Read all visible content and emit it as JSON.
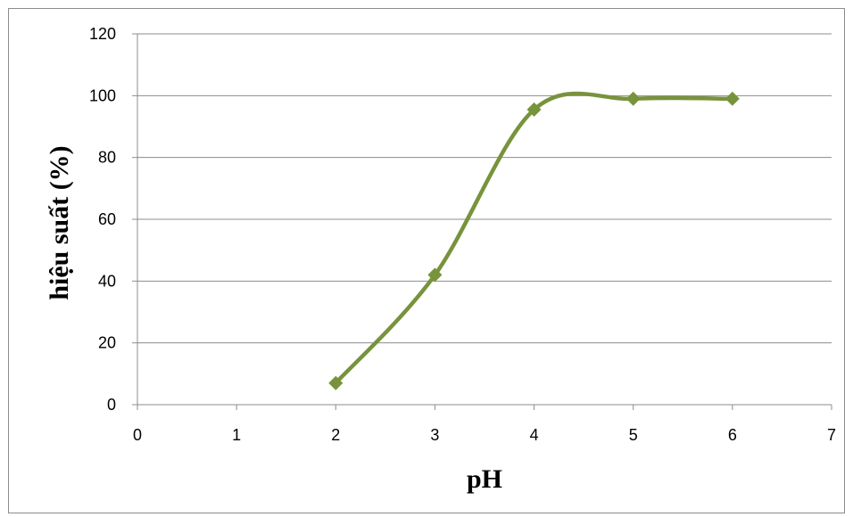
{
  "chart_data": {
    "type": "line",
    "smooth": true,
    "xlabel": "pH",
    "ylabel": "hiệu suất (%)",
    "xlim": [
      0,
      7
    ],
    "ylim": [
      0,
      120
    ],
    "x_ticks": [
      0,
      1,
      2,
      3,
      4,
      5,
      6,
      7
    ],
    "y_ticks": [
      0,
      20,
      40,
      60,
      80,
      100,
      120
    ],
    "grid": "horizontal",
    "legend": "none",
    "series": [
      {
        "x": [
          2,
          3,
          4,
          5,
          6
        ],
        "values": [
          7,
          42,
          95.5,
          99,
          99
        ],
        "color": "#77933c",
        "marker": "diamond"
      }
    ]
  }
}
